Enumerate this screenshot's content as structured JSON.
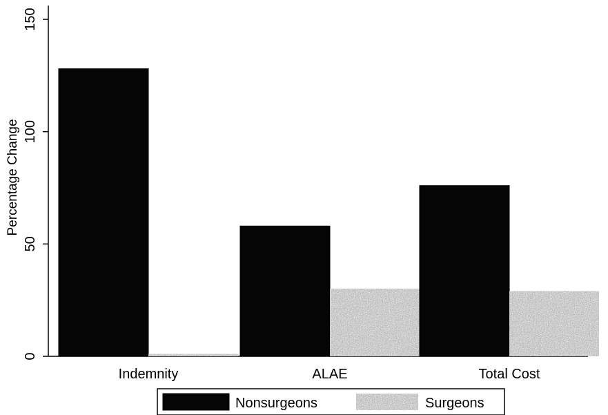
{
  "chart_data": {
    "type": "bar",
    "title": "",
    "xlabel": "",
    "ylabel": "Percentage Change",
    "ylim": [
      0,
      150
    ],
    "yticks": [
      "0",
      "50",
      "100",
      "150"
    ],
    "categories": [
      "Indemnity",
      "ALAE",
      "Total Cost"
    ],
    "series": [
      {
        "name": "Nonsurgeons",
        "values": [
          128,
          58,
          76
        ],
        "color": "#050505"
      },
      {
        "name": "Surgeons",
        "values": [
          1,
          30,
          29
        ],
        "color": "#7f7f7f"
      }
    ],
    "grid": false,
    "legend_position": "bottom"
  }
}
